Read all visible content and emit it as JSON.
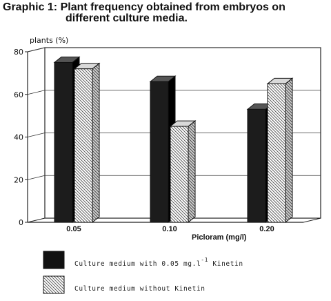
{
  "title_line1": "Graphic 1: Plant frequency obtained from embryos on",
  "title_line2": "different culture media.",
  "chart_data": {
    "type": "bar",
    "title": "Graphic 1: Plant frequency obtained from embryos on different culture media.",
    "ylabel": "plants (%)",
    "xlabel": "Picloram (mg/l)",
    "categories": [
      "0.05",
      "0.10",
      "0.20"
    ],
    "ylim": [
      0,
      80
    ],
    "yticks": [
      0,
      20,
      40,
      60,
      80
    ],
    "grid": true,
    "legend_position": "bottom",
    "series": [
      {
        "name": "Culture medium with 0.05 mg.l-1 Kinetin",
        "values": [
          75,
          66,
          53
        ],
        "fill": "solid",
        "color": "#1a1a1a"
      },
      {
        "name": "Culture medium without Kinetin",
        "values": [
          72,
          45,
          65
        ],
        "fill": "hatched",
        "color": "#444444"
      }
    ]
  },
  "legend": [
    {
      "label": "Culture medium with 0.05 mg.l",
      "superscript": "-1",
      "suffix": " Kinetin"
    },
    {
      "label": "Culture medium without Kinetin",
      "superscript": "",
      "suffix": ""
    }
  ]
}
